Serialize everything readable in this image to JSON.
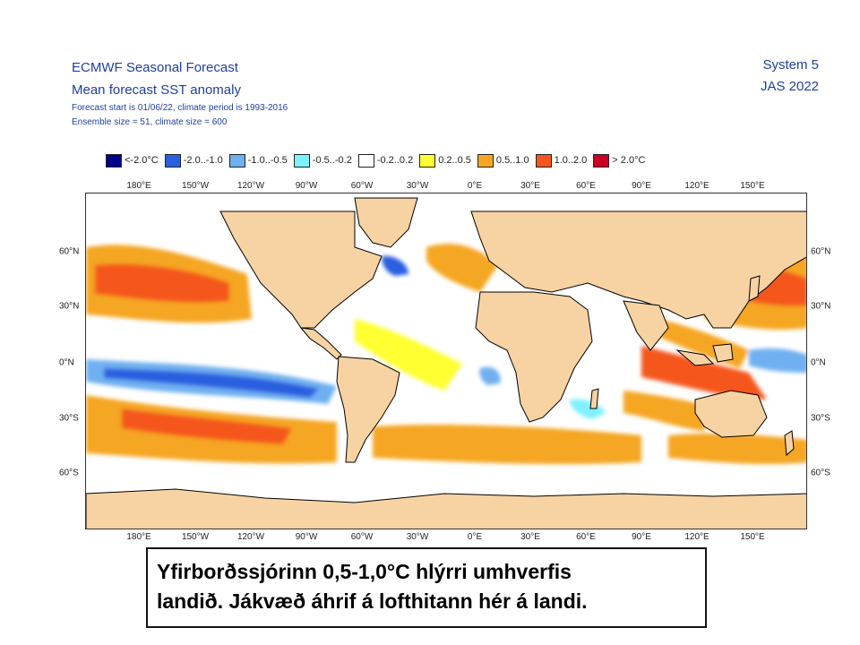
{
  "header": {
    "title_line1": "ECMWF Seasonal Forecast",
    "title_line2": "Mean forecast SST anomaly",
    "meta_line1": "Forecast start is 01/06/22, climate period is 1993-2016",
    "meta_line2": "Ensemble size = 51, climate size = 600",
    "system": "System 5",
    "season": "JAS 2022"
  },
  "legend": [
    {
      "label": "<-2.0°C",
      "color": "#00008b"
    },
    {
      "label": "-2.0..-1.0",
      "color": "#2a5fe0"
    },
    {
      "label": "-1.0..-0.5",
      "color": "#6fb0f0"
    },
    {
      "label": "-0.5..-0.2",
      "color": "#7ff0ff"
    },
    {
      "label": "-0.2..0.2",
      "color": "#ffffff"
    },
    {
      "label": "0.2..0.5",
      "color": "#ffff33"
    },
    {
      "label": "0.5..1.0",
      "color": "#f5a623"
    },
    {
      "label": "1.0..2.0",
      "color": "#f5561f"
    },
    {
      "label": "> 2.0°C",
      "color": "#cc0022"
    }
  ],
  "longitude_labels": [
    "180°E",
    "150°W",
    "120°W",
    "90°W",
    "60°W",
    "30°W",
    "0°E",
    "30°E",
    "60°E",
    "90°E",
    "120°E",
    "150°E"
  ],
  "latitude_labels": [
    "60°N",
    "30°N",
    "0°N",
    "30°S",
    "60°S"
  ],
  "colors": {
    "land": "#f7d2a3",
    "coast": "#000000",
    "text_blue": "#1f3f9f"
  },
  "caption": {
    "line1": "Yfirborðssjórinn 0,5-1,0°C hlýrri umhverfis",
    "line2": "landið. Jákvæð áhrif á lofthitann hér á landi."
  }
}
